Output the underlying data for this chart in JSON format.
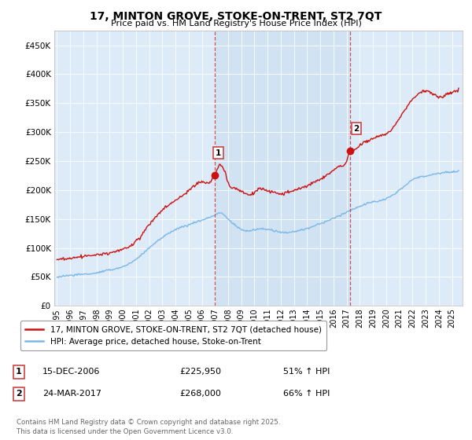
{
  "title": "17, MINTON GROVE, STOKE-ON-TRENT, ST2 7QT",
  "subtitle": "Price paid vs. HM Land Registry's House Price Index (HPI)",
  "legend_line1": "17, MINTON GROVE, STOKE-ON-TRENT, ST2 7QT (detached house)",
  "legend_line2": "HPI: Average price, detached house, Stoke-on-Trent",
  "annotation1_date": "15-DEC-2006",
  "annotation1_price": "£225,950",
  "annotation1_hpi": "51% ↑ HPI",
  "annotation2_date": "24-MAR-2017",
  "annotation2_price": "£268,000",
  "annotation2_hpi": "66% ↑ HPI",
  "footer": "Contains HM Land Registry data © Crown copyright and database right 2025.\nThis data is licensed under the Open Government Licence v3.0.",
  "hpi_color": "#7ab8e8",
  "price_color": "#cc1111",
  "marker_color": "#cc1111",
  "dashed_color": "#cc4444",
  "bg_color": "#ddeaf7",
  "fill_color": "#c8dcf0",
  "ylim": [
    0,
    475000
  ],
  "yticks": [
    0,
    50000,
    100000,
    150000,
    200000,
    250000,
    300000,
    350000,
    400000,
    450000
  ],
  "sale1_x": 2006.96,
  "sale1_y": 225950,
  "sale2_x": 2017.23,
  "sale2_y": 268000,
  "xmin": 1994.8,
  "xmax": 2025.8
}
